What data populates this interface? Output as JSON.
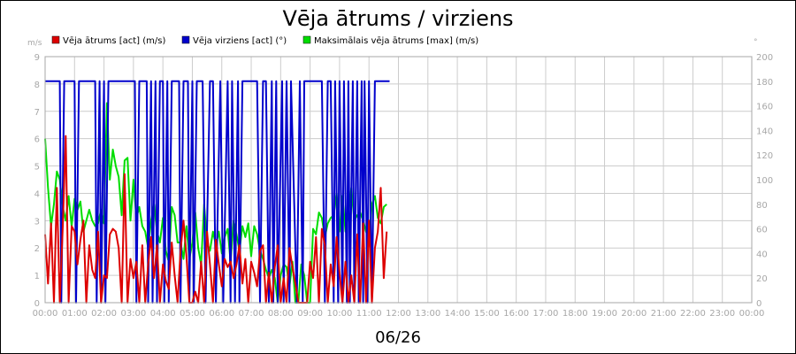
{
  "chart_data": {
    "type": "line",
    "title": "Vēja ātrums / virziens",
    "xlabel": "06/26",
    "left_axis": {
      "unit": "m/s",
      "range": [
        0,
        9
      ],
      "ticks": [
        "0",
        "1",
        "2",
        "3",
        "4",
        "5",
        "6",
        "7",
        "8",
        "9"
      ]
    },
    "right_axis": {
      "unit": "°",
      "range": [
        0,
        200
      ],
      "ticks": [
        "0",
        "20",
        "40",
        "60",
        "80",
        "100",
        "120",
        "140",
        "160",
        "180",
        "200"
      ]
    },
    "x_axis": {
      "range_hours": [
        0,
        24
      ],
      "ticks": [
        "00:00",
        "01:00",
        "02:00",
        "03:00",
        "04:00",
        "05:00",
        "06:00",
        "07:00",
        "08:00",
        "09:00",
        "10:00",
        "11:00",
        "12:00",
        "13:00",
        "14:00",
        "15:00",
        "16:00",
        "17:00",
        "18:00",
        "19:00",
        "20:00",
        "21:00",
        "22:00",
        "23:00",
        "00:00"
      ]
    },
    "grid": true,
    "legend_position": "top-left",
    "series": [
      {
        "name": "Vēja ātrums [act] (m/s)",
        "axis": "left",
        "color": "#dd0000",
        "x": [
          0,
          0.1,
          0.2,
          0.3,
          0.4,
          0.5,
          0.6,
          0.7,
          0.8,
          0.9,
          1.0,
          1.1,
          1.2,
          1.3,
          1.4,
          1.5,
          1.6,
          1.7,
          1.8,
          1.9,
          2.0,
          2.1,
          2.2,
          2.3,
          2.4,
          2.5,
          2.6,
          2.7,
          2.8,
          2.9,
          3.0,
          3.1,
          3.2,
          3.3,
          3.4,
          3.5,
          3.6,
          3.7,
          3.8,
          3.9,
          4.0,
          4.1,
          4.2,
          4.3,
          4.4,
          4.5,
          4.6,
          4.7,
          4.8,
          4.9,
          5.0,
          5.1,
          5.2,
          5.3,
          5.4,
          5.5,
          5.6,
          5.7,
          5.8,
          5.9,
          6.0,
          6.1,
          6.2,
          6.3,
          6.4,
          6.5,
          6.6,
          6.7,
          6.8,
          6.9,
          7.0,
          7.1,
          7.2,
          7.3,
          7.4,
          7.5,
          7.6,
          7.7,
          7.8,
          7.9,
          8.0,
          8.1,
          8.2,
          8.3,
          8.4,
          8.5,
          8.6,
          8.7,
          8.8,
          8.9,
          9.0,
          9.1,
          9.2,
          9.3,
          9.4,
          9.5,
          9.6,
          9.7,
          9.8,
          9.9,
          10.0,
          10.1,
          10.2,
          10.3,
          10.4,
          10.5,
          10.6,
          10.7,
          10.8,
          10.9,
          11.0,
          11.1,
          11.2,
          11.3,
          11.4,
          11.5,
          11.6
        ],
        "values": [
          2.5,
          0.7,
          2.9,
          0,
          4.2,
          0,
          2.8,
          6.1,
          0,
          2.8,
          2.6,
          1.4,
          2.3,
          3.0,
          0,
          2.1,
          1.2,
          0.9,
          2.6,
          0,
          1.0,
          0.9,
          2.5,
          2.7,
          2.6,
          2.0,
          0,
          4.7,
          0,
          1.6,
          0.9,
          1.5,
          0,
          2.1,
          0,
          1.4,
          2.4,
          0.9,
          2.1,
          0,
          1.4,
          0.8,
          0.5,
          2.2,
          1.0,
          0,
          1.9,
          3.0,
          1.7,
          0,
          0,
          0.4,
          0,
          1.5,
          0,
          2.6,
          1.4,
          0,
          2.3,
          1.4,
          0.6,
          1.6,
          1.3,
          1.5,
          0.9,
          1.4,
          2.1,
          0.7,
          1.6,
          0,
          1.5,
          1.1,
          0.6,
          1.9,
          2.1,
          0,
          1.1,
          0,
          1.3,
          2.1,
          0,
          0.9,
          0,
          2.0,
          1.3,
          0.7,
          0,
          0,
          0,
          0,
          1.5,
          0.9,
          2.4,
          0,
          2.7,
          2.1,
          0,
          1.4,
          0.6,
          2.4,
          1.1,
          0,
          1.5,
          0,
          1.0,
          0,
          2.5,
          0,
          2.9,
          0,
          3.0,
          0,
          2.0,
          2.6,
          4.2,
          0.9,
          2.6
        ]
      },
      {
        "name": "Vēja virziens [act] (°)",
        "axis": "right",
        "color": "#0000cc",
        "x": [
          0,
          0.3,
          0.5,
          0.55,
          0.65,
          0.9,
          1.0,
          1.05,
          1.15,
          1.7,
          1.75,
          1.85,
          1.9,
          2.0,
          2.05,
          2.15,
          3.05,
          3.1,
          3.2,
          3.45,
          3.5,
          3.6,
          3.65,
          3.75,
          3.8,
          3.9,
          4.0,
          4.05,
          4.15,
          4.2,
          4.3,
          4.55,
          4.6,
          4.7,
          4.85,
          4.9,
          5.0,
          5.05,
          5.15,
          5.35,
          5.45,
          5.6,
          5.7,
          5.8,
          5.95,
          6.05,
          6.2,
          6.3,
          6.35,
          6.45,
          6.55,
          6.6,
          6.7,
          7.2,
          7.3,
          7.4,
          7.5,
          7.6,
          7.7,
          7.75,
          7.85,
          7.9,
          8.05,
          8.1,
          8.2,
          8.3,
          8.35,
          8.55,
          8.65,
          8.75,
          8.8,
          9.4,
          9.5,
          9.6,
          9.7,
          9.8,
          9.85,
          9.95,
          10.0,
          10.1,
          10.15,
          10.25,
          10.3,
          10.35,
          10.45,
          10.5,
          10.6,
          10.65,
          10.75,
          10.8,
          10.85,
          10.95,
          11.0,
          11.1,
          11.2,
          11.5,
          11.6,
          11.7
        ],
        "values": [
          180,
          180,
          180,
          0,
          180,
          180,
          180,
          0,
          180,
          180,
          0,
          180,
          0,
          180,
          0,
          180,
          180,
          0,
          180,
          180,
          0,
          180,
          0,
          180,
          0,
          180,
          180,
          0,
          180,
          0,
          180,
          180,
          0,
          180,
          180,
          0,
          180,
          0,
          180,
          180,
          0,
          180,
          180,
          0,
          180,
          0,
          180,
          0,
          180,
          0,
          180,
          0,
          180,
          180,
          0,
          180,
          180,
          0,
          180,
          0,
          180,
          0,
          180,
          0,
          180,
          0,
          180,
          0,
          180,
          0,
          180,
          180,
          0,
          180,
          180,
          0,
          180,
          0,
          180,
          0,
          180,
          0,
          180,
          0,
          180,
          0,
          180,
          0,
          180,
          0,
          180,
          0,
          180,
          0,
          180,
          180,
          180,
          180
        ]
      },
      {
        "name": "Maksimālais vēja ātrums [max] (m/s)",
        "axis": "left",
        "color": "#00dd00",
        "x": [
          0,
          0.1,
          0.2,
          0.3,
          0.4,
          0.5,
          0.6,
          0.7,
          0.8,
          0.9,
          1.0,
          1.1,
          1.2,
          1.3,
          1.4,
          1.5,
          1.6,
          1.7,
          1.8,
          1.9,
          2.0,
          2.1,
          2.2,
          2.3,
          2.4,
          2.5,
          2.6,
          2.7,
          2.8,
          2.9,
          3.0,
          3.1,
          3.2,
          3.3,
          3.4,
          3.5,
          3.6,
          3.7,
          3.8,
          3.9,
          4.0,
          4.1,
          4.2,
          4.3,
          4.4,
          4.5,
          4.6,
          4.7,
          4.8,
          4.9,
          5.0,
          5.1,
          5.2,
          5.3,
          5.4,
          5.5,
          5.6,
          5.7,
          5.8,
          5.9,
          6.0,
          6.1,
          6.2,
          6.3,
          6.4,
          6.5,
          6.6,
          6.7,
          6.8,
          6.9,
          7.0,
          7.1,
          7.2,
          7.3,
          7.4,
          7.5,
          7.6,
          7.7,
          7.8,
          7.9,
          8.0,
          8.1,
          8.2,
          8.3,
          8.4,
          8.5,
          8.6,
          8.7,
          8.8,
          8.9,
          9.0,
          9.1,
          9.2,
          9.3,
          9.4,
          9.5,
          9.6,
          9.7,
          9.8,
          9.9,
          10.0,
          10.1,
          10.2,
          10.3,
          10.4,
          10.5,
          10.6,
          10.7,
          10.8,
          10.9,
          11.0,
          11.1,
          11.2,
          11.3,
          11.4,
          11.5,
          11.6
        ],
        "values": [
          6.0,
          4.2,
          2.8,
          3.6,
          4.8,
          4.5,
          3.5,
          3.0,
          3.9,
          2.8,
          3.8,
          3.4,
          3.7,
          2.6,
          3.0,
          3.4,
          3.0,
          2.8,
          2.9,
          3.4,
          2.9,
          7.3,
          4.5,
          5.6,
          5.0,
          4.6,
          3.2,
          5.2,
          5.3,
          3.0,
          4.5,
          3.1,
          3.5,
          2.8,
          2.6,
          2.0,
          3.0,
          3.6,
          2.6,
          2.2,
          3.1,
          1.9,
          1.5,
          3.5,
          3.2,
          2.2,
          2.2,
          1.6,
          2.8,
          1.6,
          2.2,
          3.3,
          2.0,
          1.4,
          3.6,
          2.2,
          1.9,
          2.6,
          2.1,
          2.6,
          1.8,
          2.4,
          2.7,
          1.5,
          3.0,
          2.5,
          1.9,
          2.8,
          2.4,
          2.9,
          1.7,
          2.8,
          2.5,
          1.9,
          1.6,
          1.2,
          0.9,
          1.2,
          0.9,
          0,
          1.0,
          1.4,
          1.3,
          0.6,
          1.5,
          0,
          0,
          1.4,
          1.0,
          0,
          0,
          2.7,
          2.5,
          3.3,
          3.1,
          2.4,
          2.9,
          3.1,
          3.2,
          4.0,
          2.6,
          3.9,
          2.6,
          3.2,
          4.2,
          3.0,
          3.2,
          3.3,
          3.0,
          2.6,
          2.3,
          3.6,
          3.9,
          3.1,
          2.9,
          3.5,
          3.6
        ]
      }
    ]
  }
}
